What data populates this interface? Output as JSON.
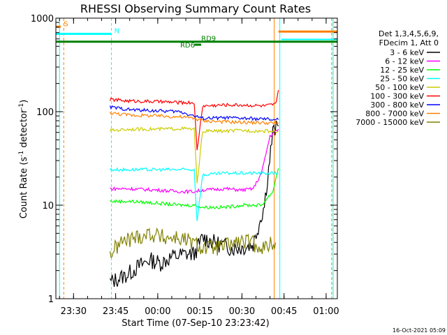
{
  "chart_data": {
    "type": "line",
    "title": "RHESSI Observing Summary Count Rates",
    "xlabel": "Start Time (07-Sep-10 23:23:42)",
    "ylabel_main": "Count Rate (s",
    "ylabel_sup": "-1",
    "ylabel_tail": " detector",
    "ylabel_end": ")",
    "yscale": "log",
    "ylim": [
      1,
      1000
    ],
    "xlim": [
      "23:23:42",
      "01:04:00"
    ],
    "x_ticks": [
      "23:30",
      "23:45",
      "00:00",
      "00:15",
      "00:30",
      "00:45",
      "01:00"
    ],
    "y_ticks": [
      "1",
      "10",
      "100",
      "1000"
    ],
    "footer_date": "16-Oct-2021 05:09",
    "legend_header": [
      "Det 1,3,4,5,6,9,",
      "FDecim 1, Att 0"
    ],
    "legend_position": "right",
    "flags": [
      {
        "label": "S",
        "color": "#ff8000",
        "y": 810
      },
      {
        "label": "N",
        "color": "#00ffff",
        "y": 680
      },
      {
        "label": "RD9",
        "color": "#008000",
        "y": 560
      },
      {
        "label": "RD6",
        "color": "#008000",
        "y": 520
      }
    ],
    "series": [
      {
        "name": "3 - 6 keV",
        "color": "#000000",
        "x": [
          "23:43",
          "23:49",
          "23:53",
          "23:57",
          "00:01",
          "00:05",
          "00:10",
          "00:13",
          "00:16",
          "00:20",
          "00:26",
          "00:30",
          "00:34",
          "00:38",
          "00:41",
          "00:43"
        ],
        "y": [
          1.5,
          1.8,
          2.2,
          2.6,
          2.4,
          2.8,
          3.0,
          3.0,
          4.5,
          4.0,
          3.5,
          3.5,
          3.8,
          10,
          60,
          70
        ]
      },
      {
        "name": "6 - 12 keV",
        "color": "#ff00ff",
        "x": [
          "23:43",
          "23:50",
          "00:00",
          "00:08",
          "00:13",
          "00:16",
          "00:24",
          "00:30",
          "00:34",
          "00:37",
          "00:40",
          "00:43"
        ],
        "y": [
          15,
          15,
          14.5,
          14,
          14,
          14.5,
          15,
          14.5,
          15,
          22,
          55,
          65
        ]
      },
      {
        "name": "12 - 25 keV",
        "color": "#00ff00",
        "x": [
          "23:43",
          "23:50",
          "00:00",
          "00:08",
          "00:13",
          "00:16",
          "00:24",
          "00:30",
          "00:37",
          "00:41",
          "00:43"
        ],
        "y": [
          11,
          11,
          10.5,
          10,
          10,
          9.5,
          9.5,
          10,
          10,
          14,
          25
        ]
      },
      {
        "name": "25 - 50 keV",
        "color": "#00ffff",
        "x": [
          "23:43",
          "23:50",
          "00:00",
          "00:08",
          "00:13",
          "00:14",
          "00:16",
          "00:24",
          "00:30",
          "00:38",
          "00:43"
        ],
        "y": [
          24,
          24,
          24,
          24,
          24,
          6.8,
          21,
          22,
          22,
          22,
          22
        ]
      },
      {
        "name": "50 - 100 keV",
        "color": "#cccc00",
        "x": [
          "23:43",
          "23:50",
          "00:00",
          "00:08",
          "00:13",
          "00:14",
          "00:16",
          "00:24",
          "00:30",
          "00:38",
          "00:43"
        ],
        "y": [
          63,
          65,
          65,
          66,
          65,
          17,
          62,
          62,
          63,
          62,
          62
        ]
      },
      {
        "name": "100 - 300 keV",
        "color": "#ff0000",
        "x": [
          "23:43",
          "23:50",
          "00:00",
          "00:08",
          "00:13",
          "00:14",
          "00:16",
          "00:24",
          "00:30",
          "00:38",
          "00:42",
          "00:43"
        ],
        "y": [
          135,
          130,
          128,
          125,
          125,
          38,
          115,
          118,
          118,
          115,
          120,
          170
        ]
      },
      {
        "name": "300 - 800 keV",
        "color": "#0000ff",
        "x": [
          "23:43",
          "23:50",
          "00:00",
          "00:08",
          "00:13",
          "00:16",
          "00:24",
          "00:30",
          "00:38",
          "00:43"
        ],
        "y": [
          112,
          105,
          102,
          100,
          90,
          85,
          86,
          85,
          83,
          82
        ]
      },
      {
        "name": "800 - 7000 keV",
        "color": "#ff8000",
        "x": [
          "23:43",
          "23:50",
          "00:00",
          "00:08",
          "00:13",
          "00:16",
          "00:24",
          "00:30",
          "00:38",
          "00:43"
        ],
        "y": [
          97,
          92,
          90,
          88,
          85,
          80,
          78,
          77,
          76,
          75
        ]
      },
      {
        "name": "7000 - 15000 keV",
        "color": "#808000",
        "x": [
          "23:43",
          "23:47",
          "23:52",
          "23:57",
          "00:02",
          "00:07",
          "00:12",
          "00:16",
          "00:22",
          "00:28",
          "00:33",
          "00:38",
          "00:42"
        ],
        "y": [
          3.0,
          4.0,
          4.5,
          5.0,
          4.5,
          4.5,
          4.0,
          3.5,
          3.5,
          4.0,
          4.0,
          3.5,
          4.0
        ]
      }
    ]
  }
}
